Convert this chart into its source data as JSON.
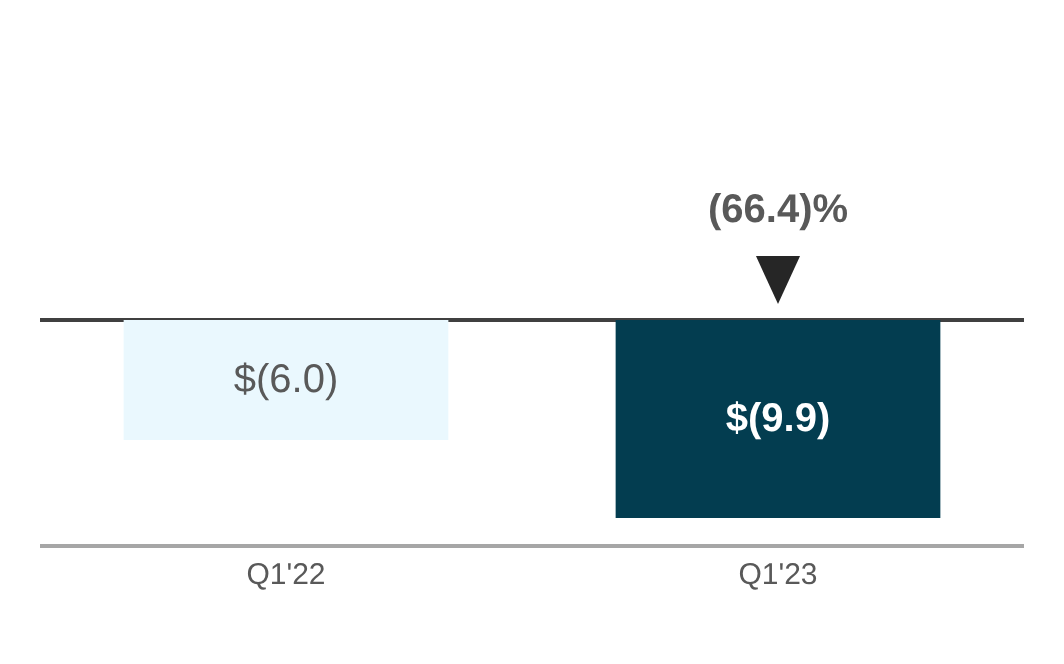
{
  "chart_data": {
    "type": "bar",
    "relative": false,
    "categories": [
      "Q1'22",
      "Q1'23"
    ],
    "values": [
      -6.0,
      -9.9
    ],
    "colors": [
      "#eaf8fe",
      "#033d50"
    ],
    "value_labels": [
      "$(6.0)",
      "$(9.9)"
    ],
    "ylim": [
      -11.2,
      0
    ],
    "annotations": [
      {
        "text": "(66.4)%",
        "x": "Q1'23",
        "y": 0
      }
    ],
    "legend": false
  }
}
